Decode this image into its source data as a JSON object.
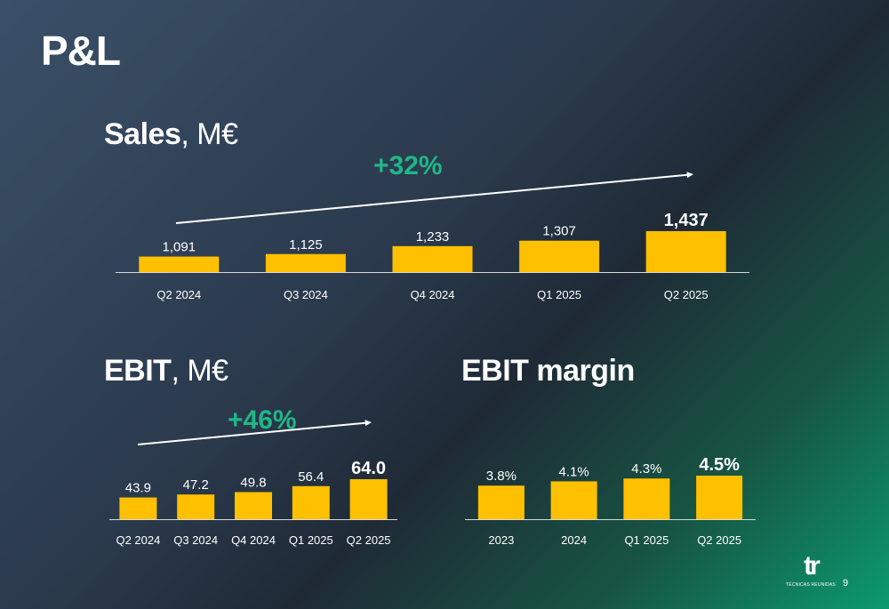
{
  "page_title": "P&L",
  "page_number": "9",
  "logo": {
    "mark": "tr",
    "text": "TÉCNICAS REUNIDAS",
    "icon": "tr-logo-icon"
  },
  "colors": {
    "bar": "#ffc000",
    "growth": "#1fb788",
    "axis": "#d9d9d9",
    "text": "#ffffff"
  },
  "chart_data": [
    {
      "id": "sales",
      "type": "bar",
      "title_bold": "Sales",
      "title_rest": ", M€",
      "growth_label": "+32%",
      "categories": [
        "Q2 2024",
        "Q3 2024",
        "Q4 2024",
        "Q1 2025",
        "Q2 2025"
      ],
      "values": [
        1091,
        1125,
        1233,
        1307,
        1437
      ],
      "value_labels": [
        "1,091",
        "1,125",
        "1,233",
        "1,307",
        "1,437"
      ],
      "highlight_last": true
    },
    {
      "id": "ebit",
      "type": "bar",
      "title_bold": "EBIT",
      "title_rest": ", M€",
      "growth_label": "+46%",
      "categories": [
        "Q2 2024",
        "Q3 2024",
        "Q4 2024",
        "Q1 2025",
        "Q2 2025"
      ],
      "values": [
        43.9,
        47.2,
        49.8,
        56.4,
        64.0
      ],
      "value_labels": [
        "43.9",
        "47.2",
        "49.8",
        "56.4",
        "64.0"
      ],
      "highlight_last": true
    },
    {
      "id": "margin",
      "type": "bar",
      "title_bold": "EBIT margin",
      "title_rest": "",
      "categories": [
        "2023",
        "2024",
        "Q1 2025",
        "Q2 2025"
      ],
      "values": [
        3.8,
        4.1,
        4.3,
        4.5
      ],
      "value_labels": [
        "3.8%",
        "4.1%",
        "4.3%",
        "4.5%"
      ],
      "highlight_last": true
    }
  ]
}
